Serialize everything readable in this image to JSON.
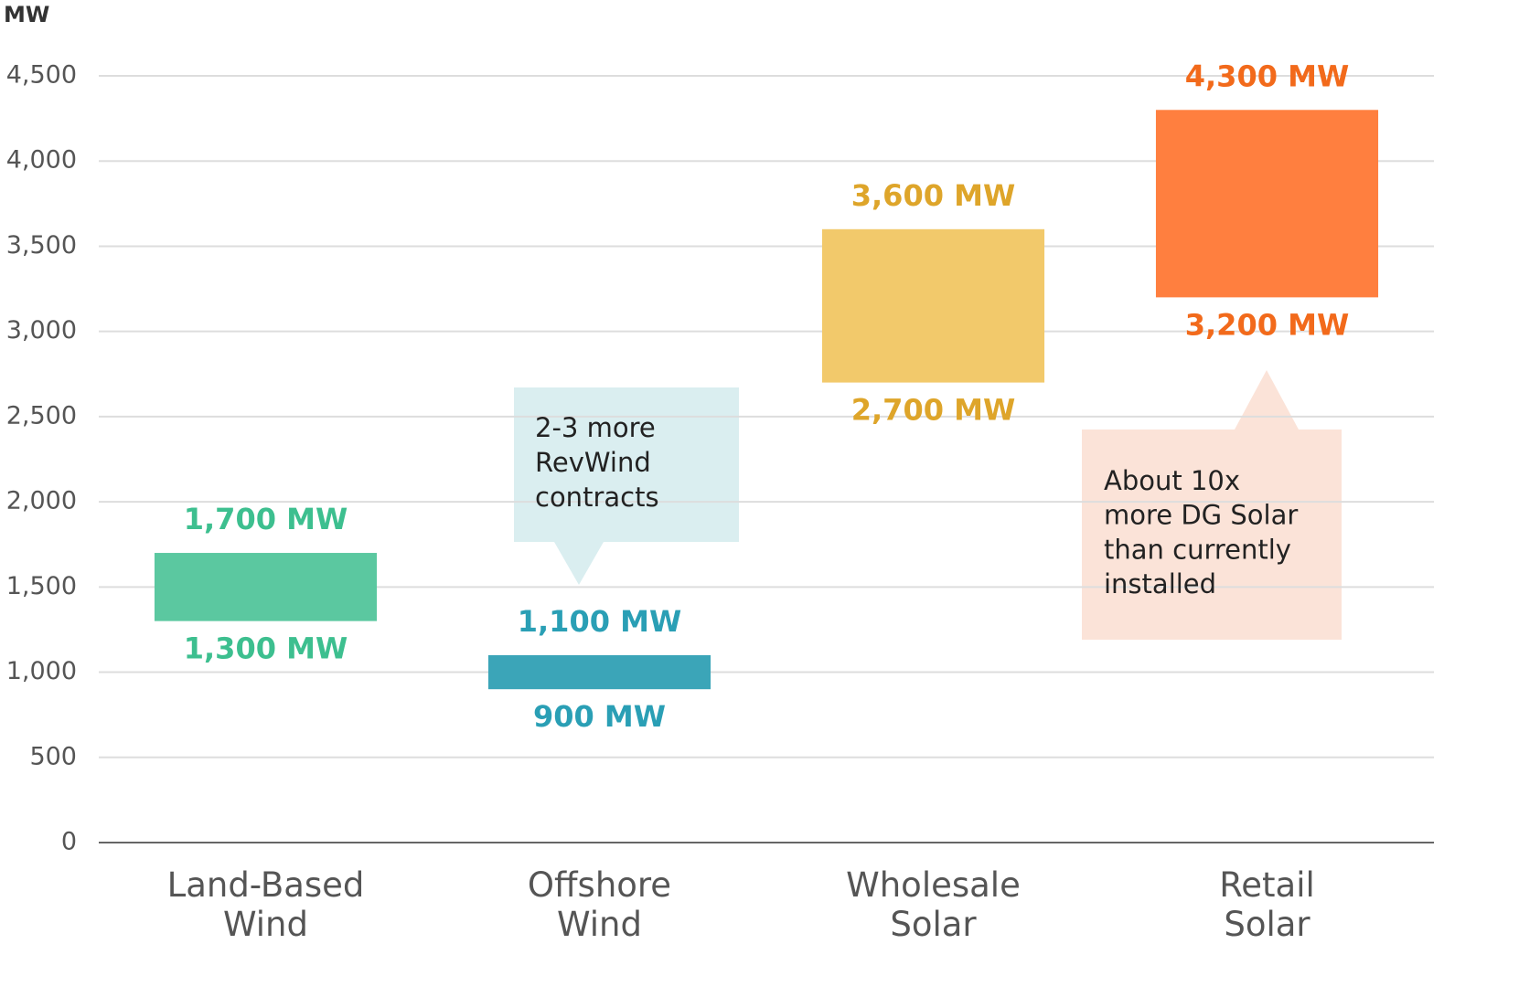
{
  "chart_data": {
    "type": "floating-bar",
    "y_label": "MW",
    "categories": [
      "Land-Based Wind",
      "Offshore Wind",
      "Wholesale Solar",
      "Retail Solar"
    ],
    "low": {
      "values": [
        1300,
        900,
        2700,
        3200
      ],
      "value_labels": [
        "1,300 MW",
        "900 MW",
        "2,700 MW",
        "3,200 MW"
      ]
    },
    "high": {
      "values": [
        1700,
        1100,
        3600,
        4300
      ],
      "value_labels": [
        "1,700 MW",
        "1,100 MW",
        "3,600 MW",
        "4,300 MW"
      ]
    },
    "colors": [
      "#5bc8a0",
      "#3ba5b8",
      "#f2c96b",
      "#ff7f3f"
    ],
    "label_colors": [
      "#3dbf8f",
      "#2a9fb5",
      "#dea52a",
      "#f26a1b"
    ],
    "ylim": [
      0,
      4500
    ],
    "yticks": [
      0,
      500,
      {
        "value": 1000,
        "label": "1,000"
      },
      {
        "value": 1500,
        "label": "1,500"
      },
      {
        "value": 2000,
        "label": "2,000"
      },
      {
        "value": 2500,
        "label": "2,500"
      },
      {
        "value": 3000,
        "label": "3,000"
      },
      {
        "value": 3500,
        "label": "3,500"
      },
      {
        "value": 4000,
        "label": "4,000"
      },
      {
        "value": 4500,
        "label": "4,500"
      }
    ],
    "grid": true,
    "annotations": [
      {
        "lines": [
          "2-3 more",
          "RevWind",
          "contracts"
        ],
        "color": "#daeef0"
      },
      {
        "lines": [
          "About 10x",
          "more DG Solar",
          "than currently",
          "installed"
        ],
        "color": "#fbe3d8"
      }
    ]
  }
}
